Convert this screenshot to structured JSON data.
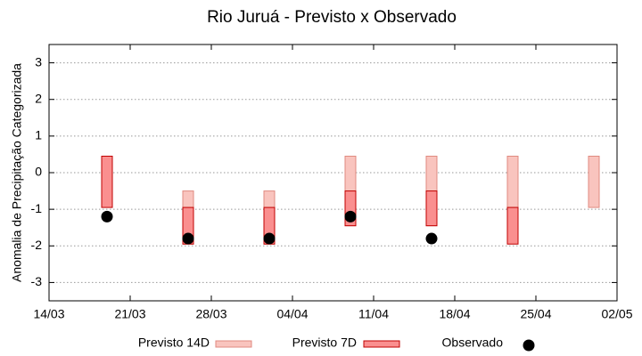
{
  "chart_data": {
    "type": "bar",
    "title": "Rio Juruá - Previsto x Observado",
    "y_label": "Anomalia de Precipitação Categorizada",
    "x": [
      "19/03",
      "26/03",
      "02/04",
      "09/04",
      "16/04",
      "23/04",
      "30/04"
    ],
    "series": [
      {
        "name": "Previsto 14D",
        "color": "#f9c4be",
        "edge": "#e08a80",
        "high": [
          null,
          -0.5,
          -0.5,
          0.45,
          0.45,
          0.45,
          0.45
        ],
        "low": [
          null,
          -1.95,
          -1.95,
          -1.45,
          -1.45,
          -0.95,
          -0.95
        ]
      },
      {
        "name": "Previsto 7D",
        "color": "#fa8f8f",
        "edge": "#c00000",
        "high": [
          0.45,
          -0.95,
          -0.95,
          -0.5,
          -0.5,
          -0.95,
          null
        ],
        "low": [
          -0.95,
          -1.95,
          -1.95,
          -1.45,
          -1.45,
          -1.95,
          null
        ]
      },
      {
        "name": "Observado",
        "color": "#000000",
        "values": [
          -1.2,
          -1.8,
          -1.8,
          -1.2,
          -1.8,
          null,
          null
        ]
      }
    ],
    "xlim": [
      "14/03",
      "02/05"
    ],
    "xticks": [
      "14/03",
      "21/03",
      "28/03",
      "04/04",
      "11/04",
      "18/04",
      "25/04",
      "02/05"
    ],
    "ylim": [
      -3.5,
      3.5
    ],
    "yticks": [
      -3,
      -2,
      -1,
      0,
      1,
      2,
      3
    ],
    "grid": true,
    "legend": "bottom"
  }
}
